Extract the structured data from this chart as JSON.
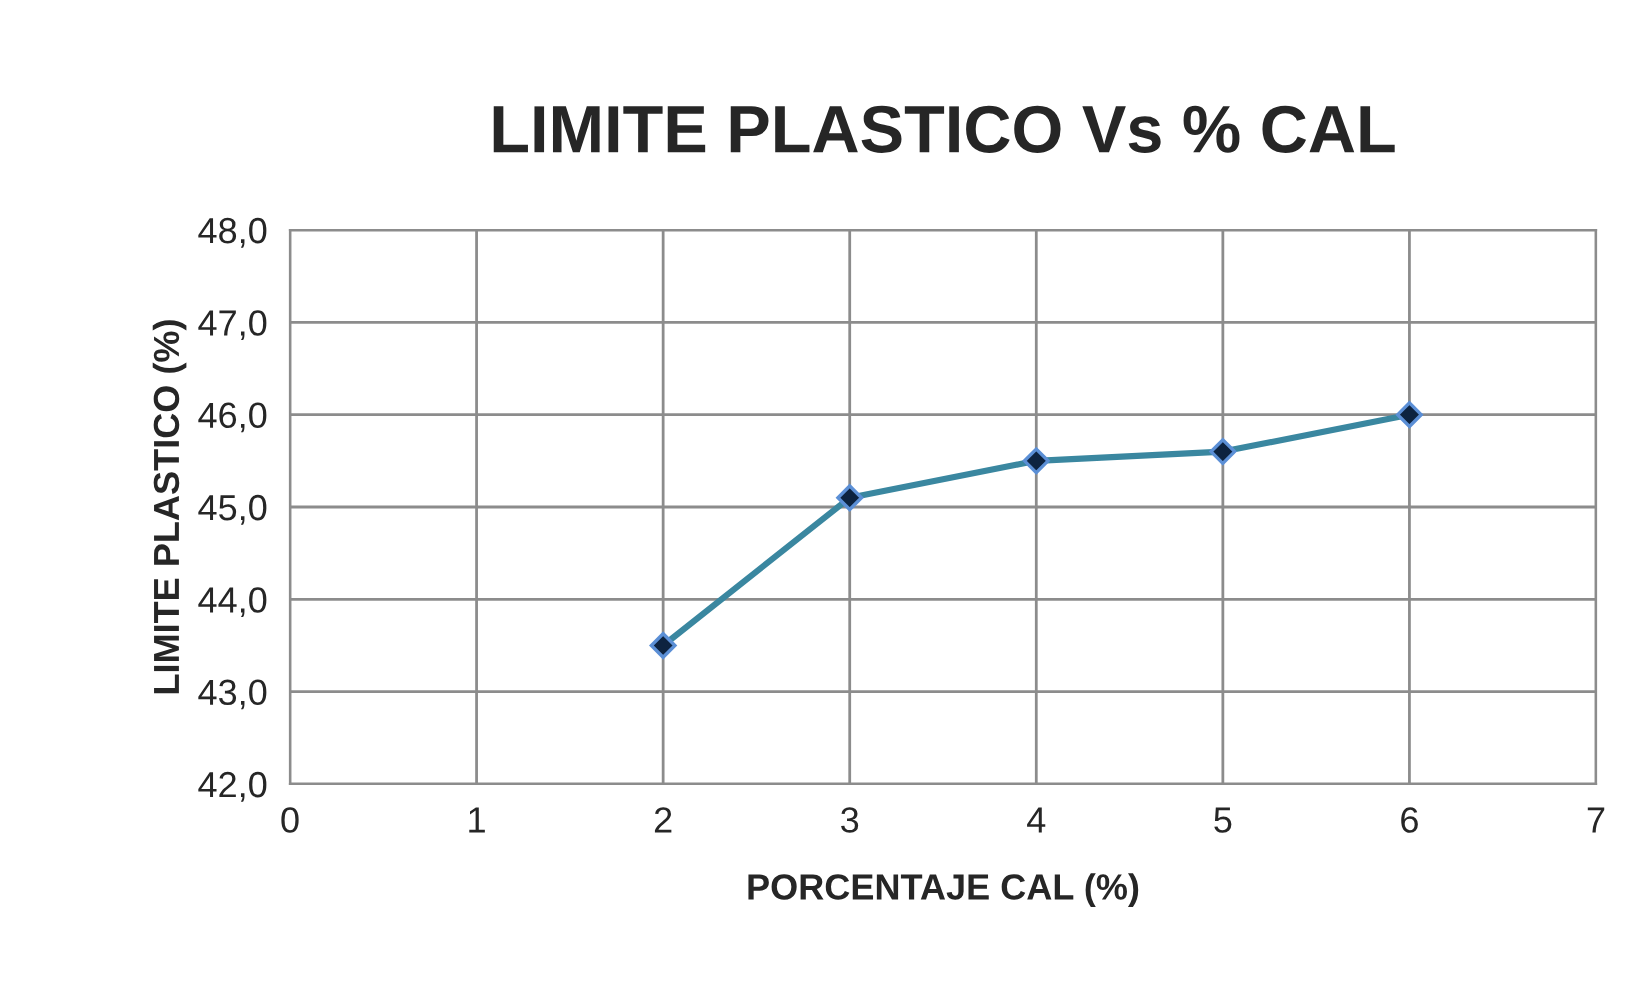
{
  "chart_data": {
    "type": "line",
    "title": "LIMITE PLASTICO Vs % CAL",
    "xlabel": "PORCENTAJE CAL (%)",
    "ylabel": "LIMITE PLASTICO (%)",
    "x": [
      2,
      3,
      4,
      5,
      6
    ],
    "series": [
      {
        "color": "#3a87a0",
        "values": [
          43.5,
          45.1,
          45.5,
          45.6,
          46.0
        ]
      }
    ],
    "marker": "diamond",
    "line_style": "solid",
    "grid": true,
    "legend": false,
    "xlim": [
      0,
      7
    ],
    "xticks": [
      0,
      1,
      2,
      3,
      4,
      5,
      6,
      7
    ],
    "ylim": [
      42,
      48
    ],
    "yticks": [
      {
        "value": 42,
        "label": "42,0"
      },
      {
        "value": 43,
        "label": "43,0"
      },
      {
        "value": 44,
        "label": "44,0"
      },
      {
        "value": 45,
        "label": "45,0"
      },
      {
        "value": 46,
        "label": "46,0"
      },
      {
        "value": 47,
        "label": "47,0"
      },
      {
        "value": 48,
        "label": "48,0"
      }
    ]
  }
}
